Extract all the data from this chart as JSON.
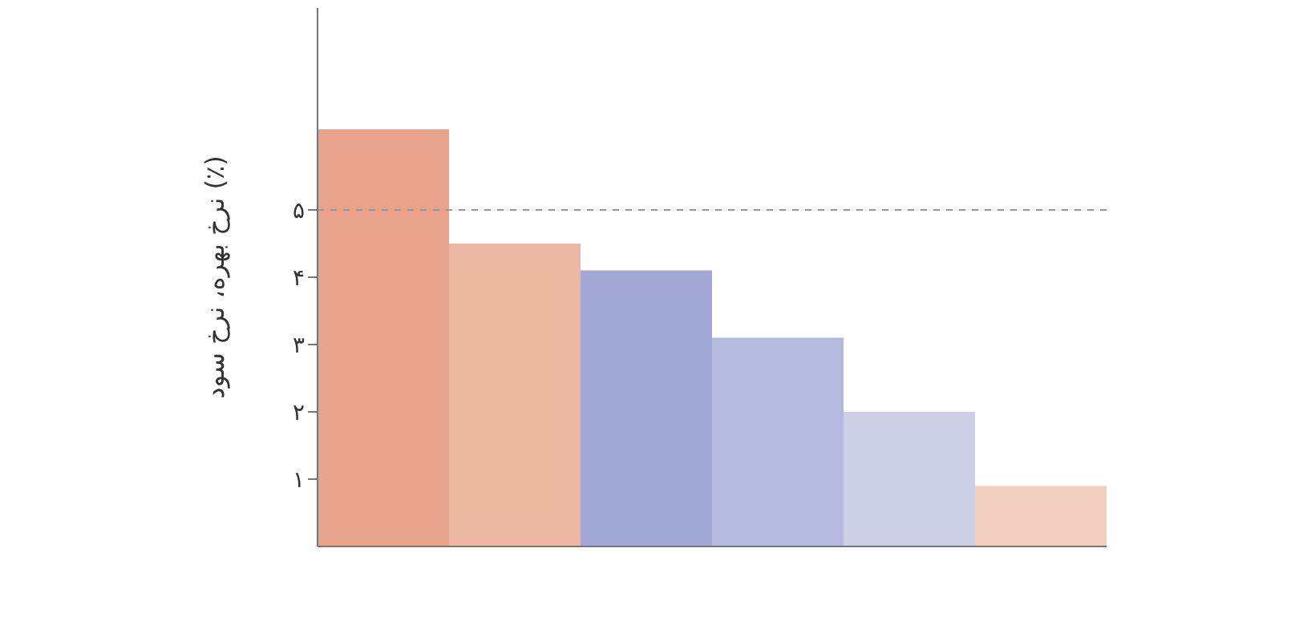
{
  "chart_data": {
    "type": "bar",
    "ylabel": "نرخ بهره، نرخ سود (٪)",
    "categories": [
      null,
      null,
      null,
      null,
      null,
      null
    ],
    "values": [
      6.2,
      4.5,
      4.1,
      3.1,
      2.0,
      0.9
    ],
    "colors": [
      "#e8a38a",
      "#edb8a2",
      "#a3a9d6",
      "#b5b9de",
      "#cbcfe8",
      "#f2cfbf"
    ],
    "ylim": [
      0,
      8
    ],
    "yticks": [
      {
        "value": 1,
        "label": "۱"
      },
      {
        "value": 2,
        "label": "۲"
      },
      {
        "value": 3,
        "label": "۳"
      },
      {
        "value": 4,
        "label": "۴"
      },
      {
        "value": 5,
        "label": "۵"
      }
    ],
    "ref_lines": [
      {
        "axis": "y",
        "value": 5,
        "color": "#999999",
        "line_style": "dashed"
      }
    ],
    "tick_labels": "y",
    "grid": false,
    "legend": false
  }
}
